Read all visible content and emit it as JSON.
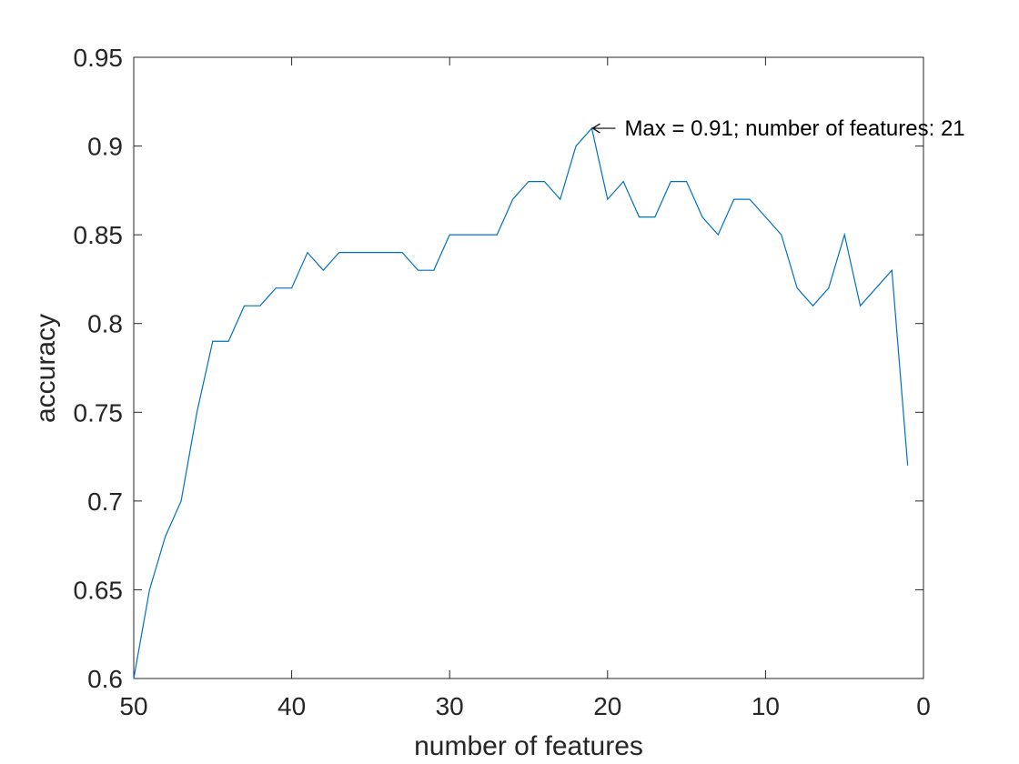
{
  "chart_data": {
    "type": "line",
    "title": "",
    "xlabel": "number of features",
    "ylabel": "accuracy",
    "xlim": [
      0,
      50
    ],
    "ylim": [
      0.6,
      0.95
    ],
    "x_reversed": true,
    "grid": false,
    "legend": "none",
    "xticks": [
      50,
      40,
      30,
      20,
      10,
      0
    ],
    "xtick_labels": [
      "50",
      "40",
      "30",
      "20",
      "10",
      "0"
    ],
    "yticks": [
      0.6,
      0.65,
      0.7,
      0.75,
      0.8,
      0.85,
      0.9,
      0.95
    ],
    "ytick_labels": [
      "0.6",
      "0.65",
      "0.7",
      "0.75",
      "0.8",
      "0.85",
      "0.9",
      "0.95"
    ],
    "series": [
      {
        "color": "#0072bd",
        "x": [
          50,
          49,
          48,
          47,
          46,
          45,
          44,
          43,
          42,
          41,
          40,
          39,
          38,
          37,
          36,
          35,
          34,
          33,
          32,
          31,
          30,
          29,
          28,
          27,
          26,
          25,
          24,
          23,
          22,
          21,
          20,
          19,
          18,
          17,
          16,
          15,
          14,
          13,
          12,
          11,
          10,
          9,
          8,
          7,
          6,
          5,
          4,
          3,
          2,
          1
        ],
        "y": [
          0.6,
          0.65,
          0.68,
          0.7,
          0.75,
          0.79,
          0.79,
          0.81,
          0.81,
          0.82,
          0.82,
          0.84,
          0.83,
          0.84,
          0.84,
          0.84,
          0.84,
          0.84,
          0.83,
          0.83,
          0.85,
          0.85,
          0.85,
          0.85,
          0.87,
          0.88,
          0.88,
          0.87,
          0.9,
          0.91,
          0.87,
          0.88,
          0.86,
          0.86,
          0.88,
          0.88,
          0.86,
          0.85,
          0.87,
          0.87,
          0.86,
          0.85,
          0.82,
          0.81,
          0.82,
          0.85,
          0.81,
          0.82,
          0.83,
          0.72
        ]
      }
    ],
    "annotation": {
      "text": "Max = 0.91; number of features: 21",
      "x": 21,
      "y": 0.91
    }
  }
}
